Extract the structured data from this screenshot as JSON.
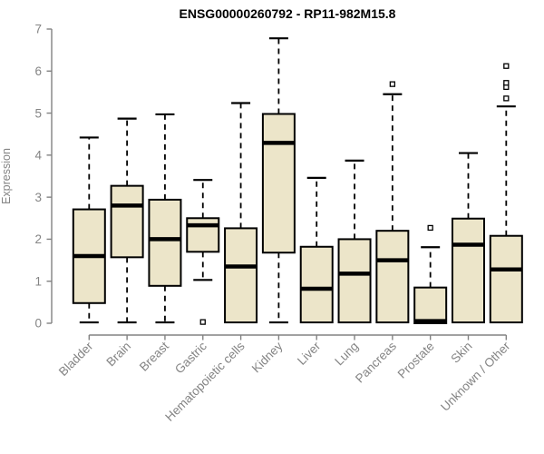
{
  "chart_data": {
    "type": "boxplot",
    "title": "ENSG00000260792 - RP11-982M15.8",
    "ylabel": "Expression",
    "xlabel": "",
    "ylim": [
      0,
      7
    ],
    "yticks": [
      0,
      1,
      2,
      3,
      4,
      5,
      6,
      7
    ],
    "grid": false,
    "legend": false,
    "categories": [
      "Bladder",
      "Brain",
      "Breast",
      "Gastric",
      "Hematopoietic cells",
      "Kidney",
      "Liver",
      "Lung",
      "Pancreas",
      "Prostate",
      "Skin",
      "Unknown / Other"
    ],
    "boxes": [
      {
        "category": "Bladder",
        "whisker_low": 0.02,
        "q1": 0.48,
        "median": 1.6,
        "q3": 2.71,
        "whisker_high": 4.42,
        "outliers": []
      },
      {
        "category": "Brain",
        "whisker_low": 0.02,
        "q1": 1.57,
        "median": 2.8,
        "q3": 3.27,
        "whisker_high": 4.87,
        "outliers": []
      },
      {
        "category": "Breast",
        "whisker_low": 0.02,
        "q1": 0.89,
        "median": 2.0,
        "q3": 2.94,
        "whisker_high": 4.97,
        "outliers": []
      },
      {
        "category": "Gastric",
        "whisker_low": 1.03,
        "q1": 1.7,
        "median": 2.33,
        "q3": 2.5,
        "whisker_high": 3.41,
        "outliers": [
          0.03
        ]
      },
      {
        "category": "Hematopoietic cells",
        "whisker_low": 0.02,
        "q1": 0.02,
        "median": 1.35,
        "q3": 2.26,
        "whisker_high": 5.24,
        "outliers": []
      },
      {
        "category": "Kidney",
        "whisker_low": 0.02,
        "q1": 1.68,
        "median": 4.29,
        "q3": 4.98,
        "whisker_high": 6.78,
        "outliers": []
      },
      {
        "category": "Liver",
        "whisker_low": 0.02,
        "q1": 0.02,
        "median": 0.82,
        "q3": 1.82,
        "whisker_high": 3.46,
        "outliers": []
      },
      {
        "category": "Lung",
        "whisker_low": 0.02,
        "q1": 0.02,
        "median": 1.18,
        "q3": 2.0,
        "whisker_high": 3.87,
        "outliers": []
      },
      {
        "category": "Pancreas",
        "whisker_low": 0.02,
        "q1": 0.02,
        "median": 1.5,
        "q3": 2.2,
        "whisker_high": 5.45,
        "outliers": [
          5.69
        ]
      },
      {
        "category": "Prostate",
        "whisker_low": 0.0,
        "q1": 0.0,
        "median": 0.05,
        "q3": 0.85,
        "whisker_high": 1.81,
        "outliers": [
          2.27
        ]
      },
      {
        "category": "Skin",
        "whisker_low": 0.02,
        "q1": 0.02,
        "median": 1.87,
        "q3": 2.49,
        "whisker_high": 4.05,
        "outliers": []
      },
      {
        "category": "Unknown / Other",
        "whisker_low": 0.02,
        "q1": 0.02,
        "median": 1.28,
        "q3": 2.08,
        "whisker_high": 5.16,
        "outliers": [
          5.35,
          5.62,
          5.72,
          6.12
        ]
      }
    ],
    "colors": {
      "box_fill": "#ECE5C9",
      "box_stroke": "#000000",
      "median": "#000000",
      "whisker": "#000000",
      "axis": "#828282",
      "tick_labels": "#848484",
      "title": "#000000",
      "background": "#FFFFFF"
    }
  }
}
